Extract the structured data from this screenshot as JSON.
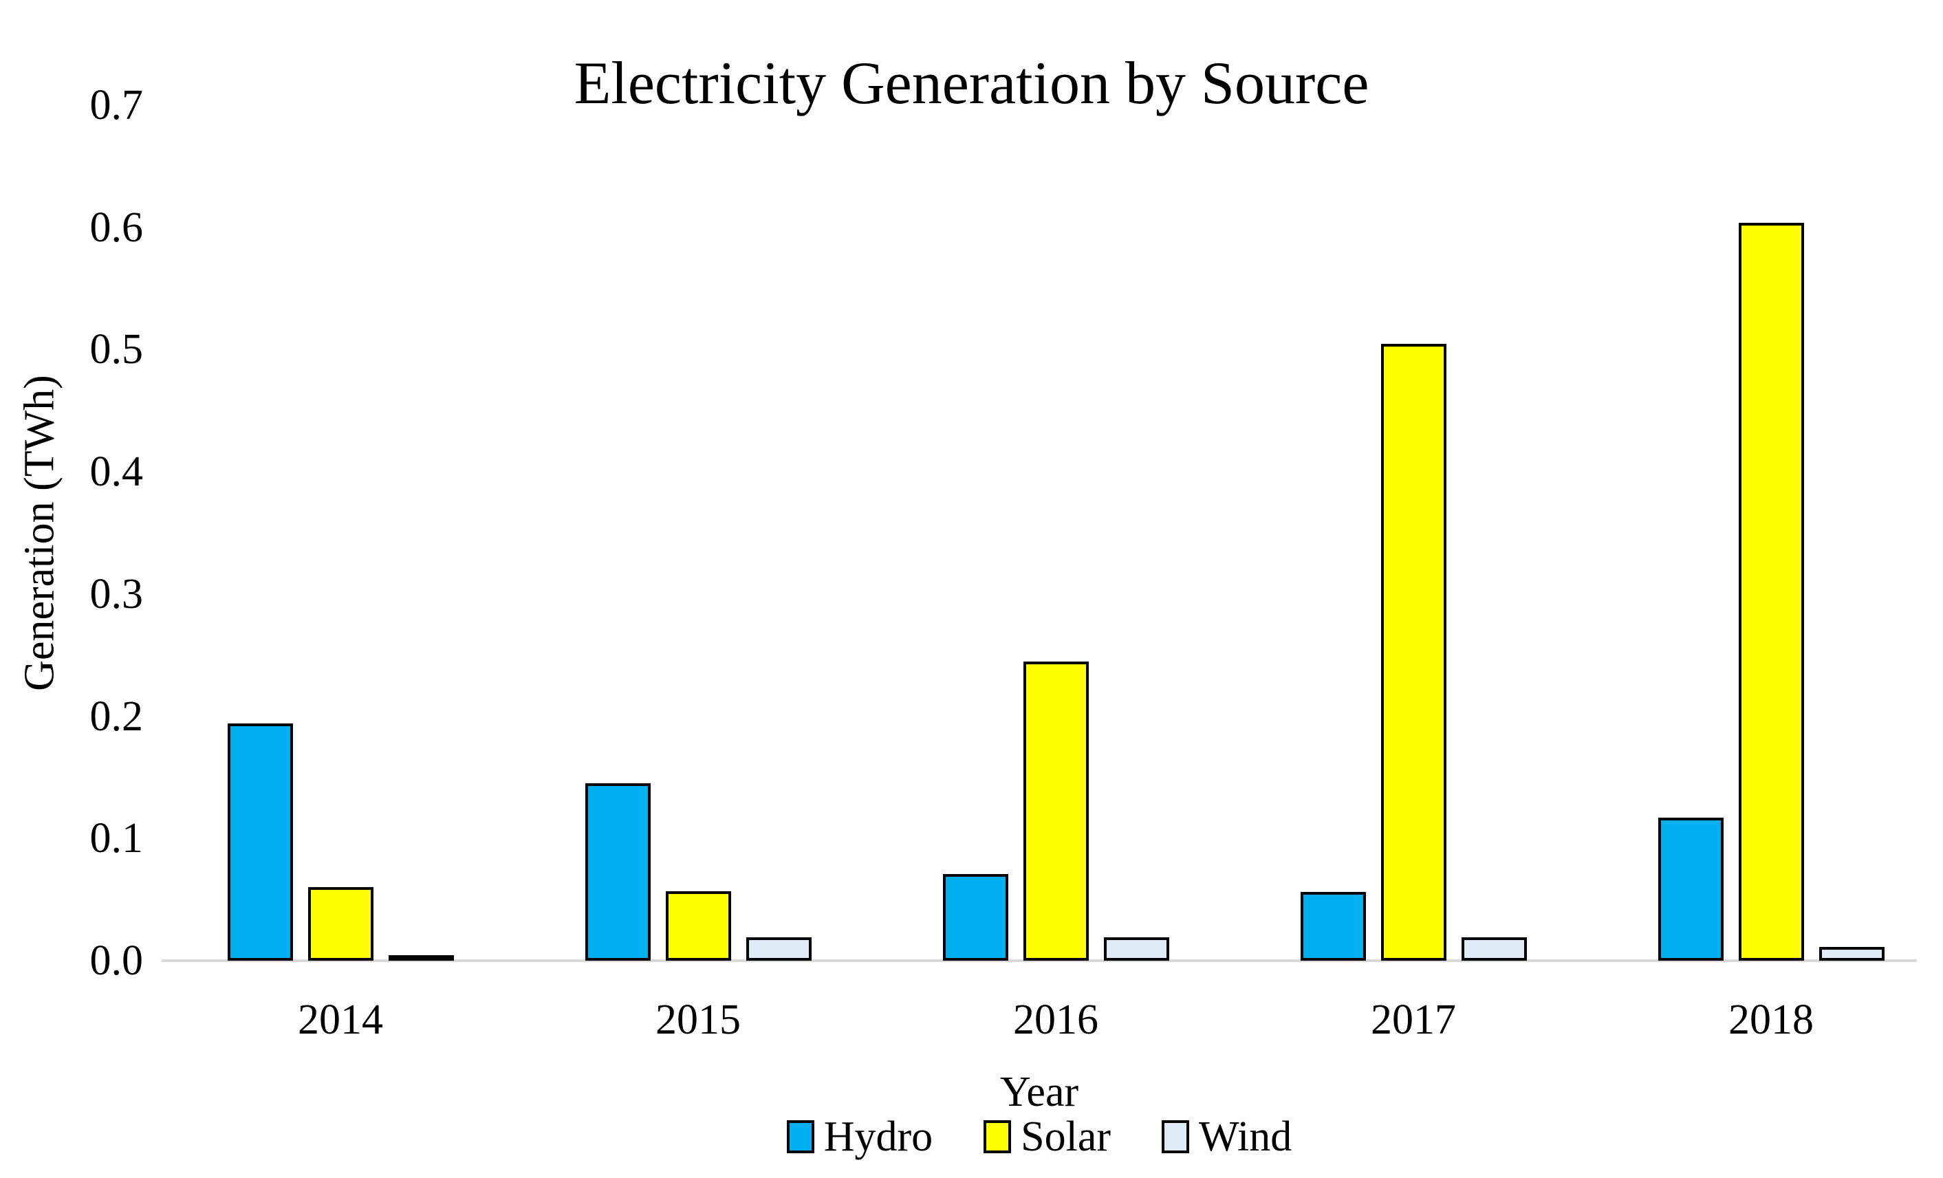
{
  "chart_data": {
    "type": "bar",
    "title": "Electricity Generation by Source",
    "xlabel": "Year",
    "ylabel": "Generation (TWh)",
    "categories": [
      "2014",
      "2015",
      "2016",
      "2017",
      "2018"
    ],
    "series": [
      {
        "name": "Hydro",
        "color": "#00B0F0",
        "values": [
          0.194,
          0.145,
          0.071,
          0.056,
          0.117
        ]
      },
      {
        "name": "Solar",
        "color": "#FFFF00",
        "values": [
          0.06,
          0.057,
          0.245,
          0.505,
          0.604
        ]
      },
      {
        "name": "Wind",
        "color": "#DEEBF7",
        "values": [
          0.002,
          0.019,
          0.019,
          0.019,
          0.011
        ]
      }
    ],
    "ylim": [
      0,
      0.7
    ],
    "yticks": [
      "0.0",
      "0.1",
      "0.2",
      "0.3",
      "0.4",
      "0.5",
      "0.6",
      "0.7"
    ],
    "grid": false,
    "legend_position": "bottom"
  },
  "colors": {
    "axis_line": "#D9D9D9",
    "bar_border": "#000000",
    "text": "#000000",
    "background": "#FFFFFF"
  }
}
